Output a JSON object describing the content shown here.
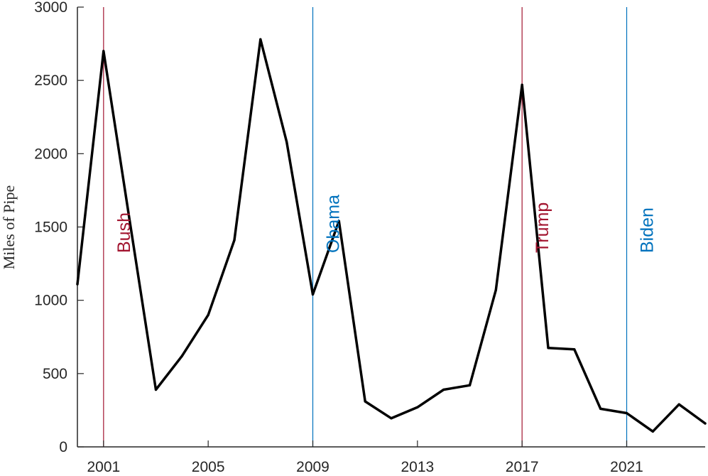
{
  "chart_data": {
    "type": "line",
    "title": "",
    "xlabel": "",
    "ylabel": "Miles of Pipe",
    "xlim": [
      2000,
      2024
    ],
    "ylim": [
      0,
      3000
    ],
    "x_ticks": [
      2001,
      2005,
      2009,
      2013,
      2017,
      2021
    ],
    "y_ticks": [
      0,
      500,
      1000,
      1500,
      2000,
      2500,
      3000
    ],
    "grid": false,
    "legend": "none",
    "series": [
      {
        "name": "",
        "color": "#000000",
        "x": [
          2000,
          2001,
          2002,
          2003,
          2004,
          2005,
          2006,
          2007,
          2008,
          2009,
          2010,
          2011,
          2012,
          2013,
          2014,
          2015,
          2016,
          2017,
          2018,
          2019,
          2020,
          2021,
          2022,
          2023,
          2024
        ],
        "y": [
          1110,
          2700,
          1540,
          390,
          620,
          900,
          1410,
          2780,
          2080,
          1040,
          1540,
          310,
          195,
          270,
          390,
          420,
          1070,
          2470,
          675,
          665,
          260,
          230,
          105,
          290,
          160
        ]
      }
    ],
    "annotations": [
      {
        "text": "Bush",
        "x": 2001,
        "color": "#a2142f"
      },
      {
        "text": "Obama",
        "x": 2009,
        "color": "#0072bd"
      },
      {
        "text": "Trump",
        "x": 2017,
        "color": "#a2142f"
      },
      {
        "text": "Biden",
        "x": 2021,
        "color": "#0072bd"
      }
    ]
  }
}
